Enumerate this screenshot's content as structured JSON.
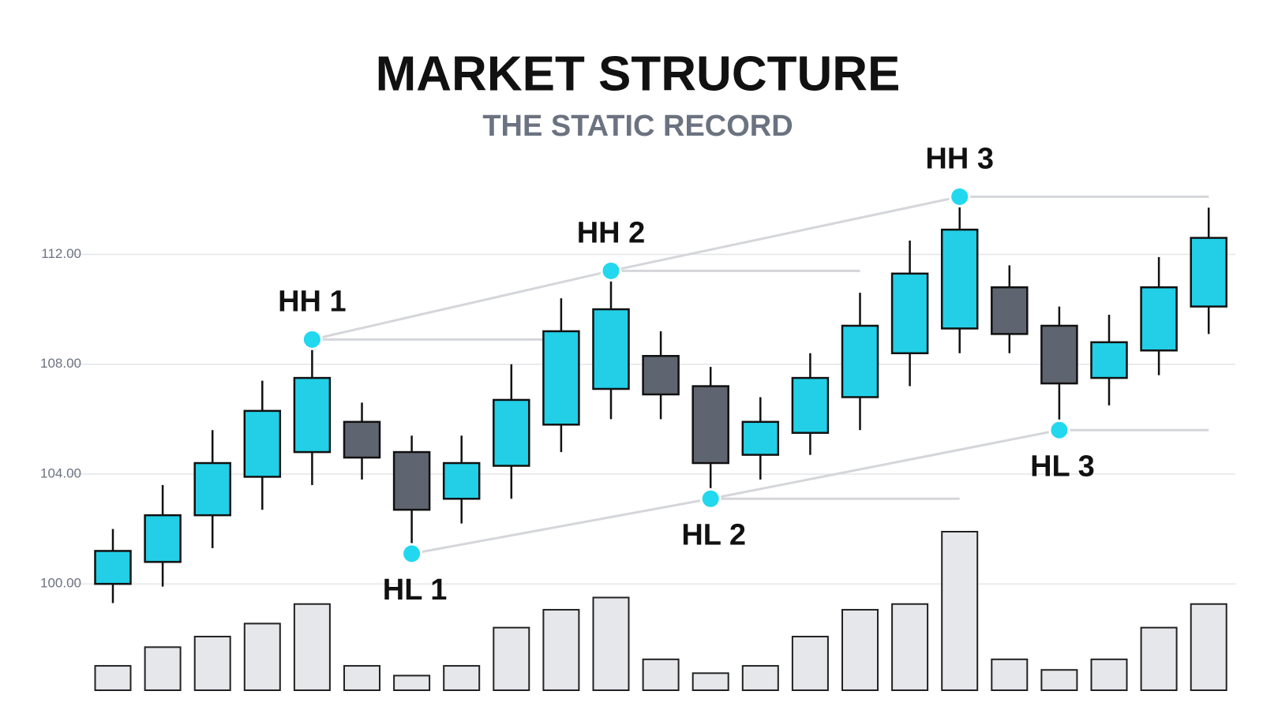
{
  "chart_data": {
    "type": "candlestick",
    "title": "MARKET STRUCTURE",
    "subtitle": "THE STATIC RECORD",
    "open": [
      100.0,
      100.8,
      102.5,
      103.9,
      104.8,
      105.9,
      104.8,
      103.1,
      104.3,
      105.8,
      107.1,
      108.3,
      107.2,
      104.7,
      105.5,
      106.8,
      108.4,
      109.3,
      110.8,
      109.4,
      107.5,
      108.5,
      110.1
    ],
    "high": [
      102.0,
      103.6,
      105.6,
      107.4,
      108.9,
      106.6,
      105.4,
      105.4,
      108.0,
      110.4,
      111.4,
      109.2,
      107.9,
      106.8,
      108.4,
      110.6,
      112.5,
      114.1,
      111.6,
      110.1,
      109.8,
      111.9,
      113.7
    ],
    "low": [
      99.3,
      99.9,
      101.3,
      102.7,
      103.6,
      103.8,
      101.1,
      102.2,
      103.1,
      104.8,
      106.0,
      106.0,
      103.1,
      103.8,
      104.7,
      105.6,
      107.2,
      108.4,
      108.4,
      105.6,
      106.5,
      107.6,
      109.1
    ],
    "close": [
      101.2,
      102.5,
      104.4,
      106.3,
      107.5,
      104.6,
      102.7,
      104.4,
      106.7,
      109.2,
      110.0,
      106.9,
      104.4,
      105.9,
      107.5,
      109.4,
      111.3,
      112.9,
      109.1,
      107.3,
      108.8,
      110.8,
      112.6
    ],
    "volume": [
      30,
      53,
      66,
      82,
      106,
      30,
      18,
      30,
      77,
      99,
      114,
      38,
      21,
      30,
      66,
      99,
      106,
      195,
      38,
      25,
      38,
      77,
      106
    ],
    "up_color": "#22cfe6",
    "down_color": "#5f6570",
    "volume_color": "#e5e7eb",
    "ylim": [
      99,
      115
    ],
    "yticks": [
      {
        "value": 100,
        "label": "100.00"
      },
      {
        "value": 104,
        "label": "104.00"
      },
      {
        "value": 108,
        "label": "108.00"
      },
      {
        "value": 112,
        "label": "112.00"
      }
    ],
    "grid": true,
    "annotations": [
      {
        "label": "HH 1",
        "index": 4,
        "value": 108.9,
        "kind": "high"
      },
      {
        "label": "HH 2",
        "index": 10,
        "value": 111.4,
        "kind": "high"
      },
      {
        "label": "HH 3",
        "index": 17,
        "value": 114.1,
        "kind": "high"
      },
      {
        "label": "HL 1",
        "index": 6,
        "value": 101.1,
        "kind": "low"
      },
      {
        "label": "HL 2",
        "index": 12,
        "value": 103.1,
        "kind": "low"
      },
      {
        "label": "HL 3",
        "index": 19,
        "value": 105.6,
        "kind": "low"
      }
    ],
    "marker_color": "#22d8ee"
  }
}
